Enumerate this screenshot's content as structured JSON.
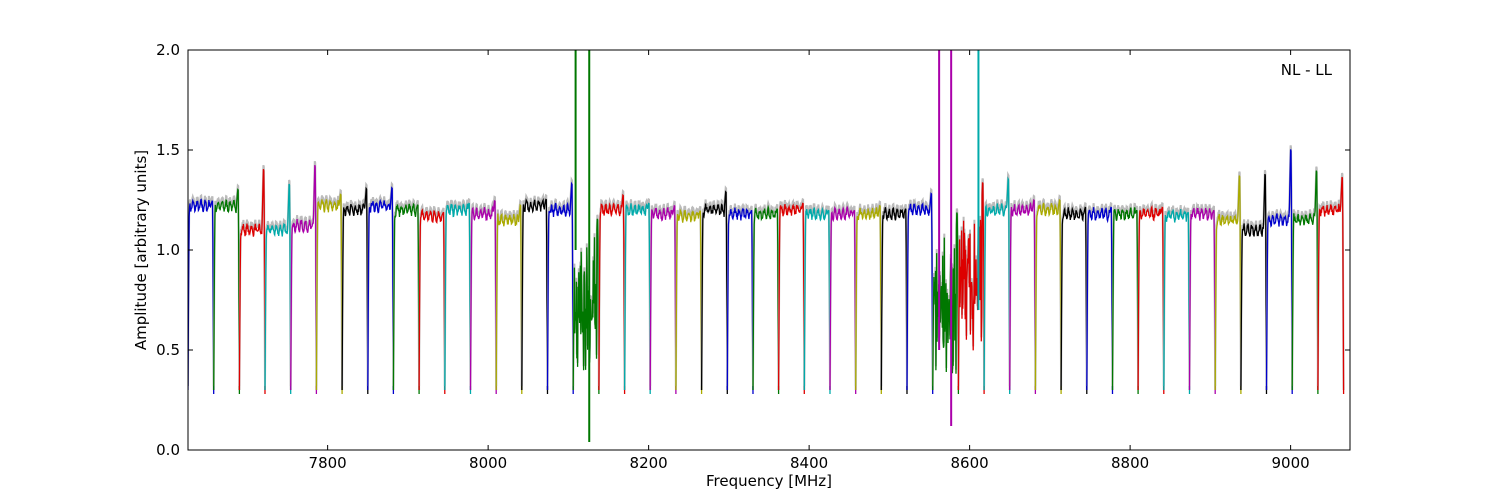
{
  "chart_data": {
    "type": "line",
    "title": "",
    "xlabel": "Frequency [MHz]",
    "ylabel": "Amplitude [arbitrary units]",
    "annotation": "NL - LL",
    "xlim": [
      7626,
      9074
    ],
    "ylim": [
      0.0,
      2.0
    ],
    "x_ticks": [
      7800,
      8000,
      8200,
      8400,
      8600,
      8800,
      9000
    ],
    "y_ticks": [
      0.0,
      0.5,
      1.0,
      1.5,
      2.0
    ],
    "y_tick_labels": [
      "0.0",
      "0.5",
      "1.0",
      "1.5",
      "2.0"
    ],
    "grid": false,
    "legend": "none",
    "band_width_mhz": 32,
    "gray_underlay_color": "#bbbbbb",
    "color_cycle": [
      "#0000cc",
      "#007700",
      "#dd0000",
      "#00aaaa",
      "#aa00aa",
      "#aaaa00",
      "#000000"
    ],
    "bands": [
      {
        "start": 7626,
        "level": 1.22,
        "peak": 1.25
      },
      {
        "start": 7658,
        "level": 1.22,
        "peak": 1.32
      },
      {
        "start": 7690,
        "level": 1.1,
        "peak": 1.47
      },
      {
        "start": 7722,
        "level": 1.1,
        "peak": 1.38
      },
      {
        "start": 7754,
        "level": 1.12,
        "peak": 1.49
      },
      {
        "start": 7786,
        "level": 1.22,
        "peak": 1.29
      },
      {
        "start": 7818,
        "level": 1.2,
        "peak": 1.33
      },
      {
        "start": 7850,
        "level": 1.22,
        "peak": 1.33
      },
      {
        "start": 7882,
        "level": 1.2,
        "peak": 1.23
      },
      {
        "start": 7914,
        "level": 1.17,
        "peak": 1.19
      },
      {
        "start": 7946,
        "level": 1.2,
        "peak": 1.24
      },
      {
        "start": 7978,
        "level": 1.18,
        "peak": 1.26
      },
      {
        "start": 8010,
        "level": 1.15,
        "peak": 1.24
      },
      {
        "start": 8042,
        "level": 1.22,
        "peak": 1.26
      },
      {
        "start": 8074,
        "level": 1.2,
        "peak": 1.36
      },
      {
        "start": 8106,
        "level": 0.95,
        "peak": 1.2,
        "noisy": true
      },
      {
        "start": 8138,
        "level": 1.2,
        "peak": 1.29
      },
      {
        "start": 8170,
        "level": 1.2,
        "peak": 1.24
      },
      {
        "start": 8202,
        "level": 1.18,
        "peak": 1.23
      },
      {
        "start": 8234,
        "level": 1.17,
        "peak": 1.2
      },
      {
        "start": 8266,
        "level": 1.2,
        "peak": 1.31
      },
      {
        "start": 8298,
        "level": 1.18,
        "peak": 1.2
      },
      {
        "start": 8330,
        "level": 1.18,
        "peak": 1.21
      },
      {
        "start": 8362,
        "level": 1.2,
        "peak": 1.24
      },
      {
        "start": 8394,
        "level": 1.18,
        "peak": 1.2
      },
      {
        "start": 8426,
        "level": 1.18,
        "peak": 1.2
      },
      {
        "start": 8458,
        "level": 1.18,
        "peak": 1.23
      },
      {
        "start": 8490,
        "level": 1.18,
        "peak": 1.21
      },
      {
        "start": 8522,
        "level": 1.2,
        "peak": 1.3
      },
      {
        "start": 8554,
        "level": 0.9,
        "peak": 1.25,
        "noisy": true
      },
      {
        "start": 8586,
        "level": 1.1,
        "peak": 1.39,
        "noisy": true
      },
      {
        "start": 8618,
        "level": 1.2,
        "peak": 1.39
      },
      {
        "start": 8650,
        "level": 1.2,
        "peak": 1.26
      },
      {
        "start": 8682,
        "level": 1.2,
        "peak": 1.26
      },
      {
        "start": 8714,
        "level": 1.18,
        "peak": 1.22
      },
      {
        "start": 8746,
        "level": 1.18,
        "peak": 1.22
      },
      {
        "start": 8778,
        "level": 1.18,
        "peak": 1.2
      },
      {
        "start": 8810,
        "level": 1.18,
        "peak": 1.22
      },
      {
        "start": 8842,
        "level": 1.17,
        "peak": 1.19
      },
      {
        "start": 8874,
        "level": 1.18,
        "peak": 1.2
      },
      {
        "start": 8906,
        "level": 1.15,
        "peak": 1.42
      },
      {
        "start": 8938,
        "level": 1.1,
        "peak": 1.44
      },
      {
        "start": 8970,
        "level": 1.15,
        "peak": 1.58
      },
      {
        "start": 9002,
        "level": 1.15,
        "peak": 1.45
      },
      {
        "start": 9034,
        "level": 1.2,
        "peak": 1.4
      }
    ],
    "spikes": [
      {
        "x": 8109,
        "y_low": 1.0,
        "y_high": 2.0,
        "color": "#007700"
      },
      {
        "x": 8126,
        "y_low": 0.04,
        "y_high": 2.0,
        "color": "#007700"
      },
      {
        "x": 8562,
        "y_low": 0.5,
        "y_high": 2.0,
        "color": "#aa00aa"
      },
      {
        "x": 8577,
        "y_low": 0.12,
        "y_high": 2.0,
        "color": "#aa00aa"
      },
      {
        "x": 8611,
        "y_low": 0.7,
        "y_high": 2.0,
        "color": "#00aaaa"
      }
    ]
  }
}
